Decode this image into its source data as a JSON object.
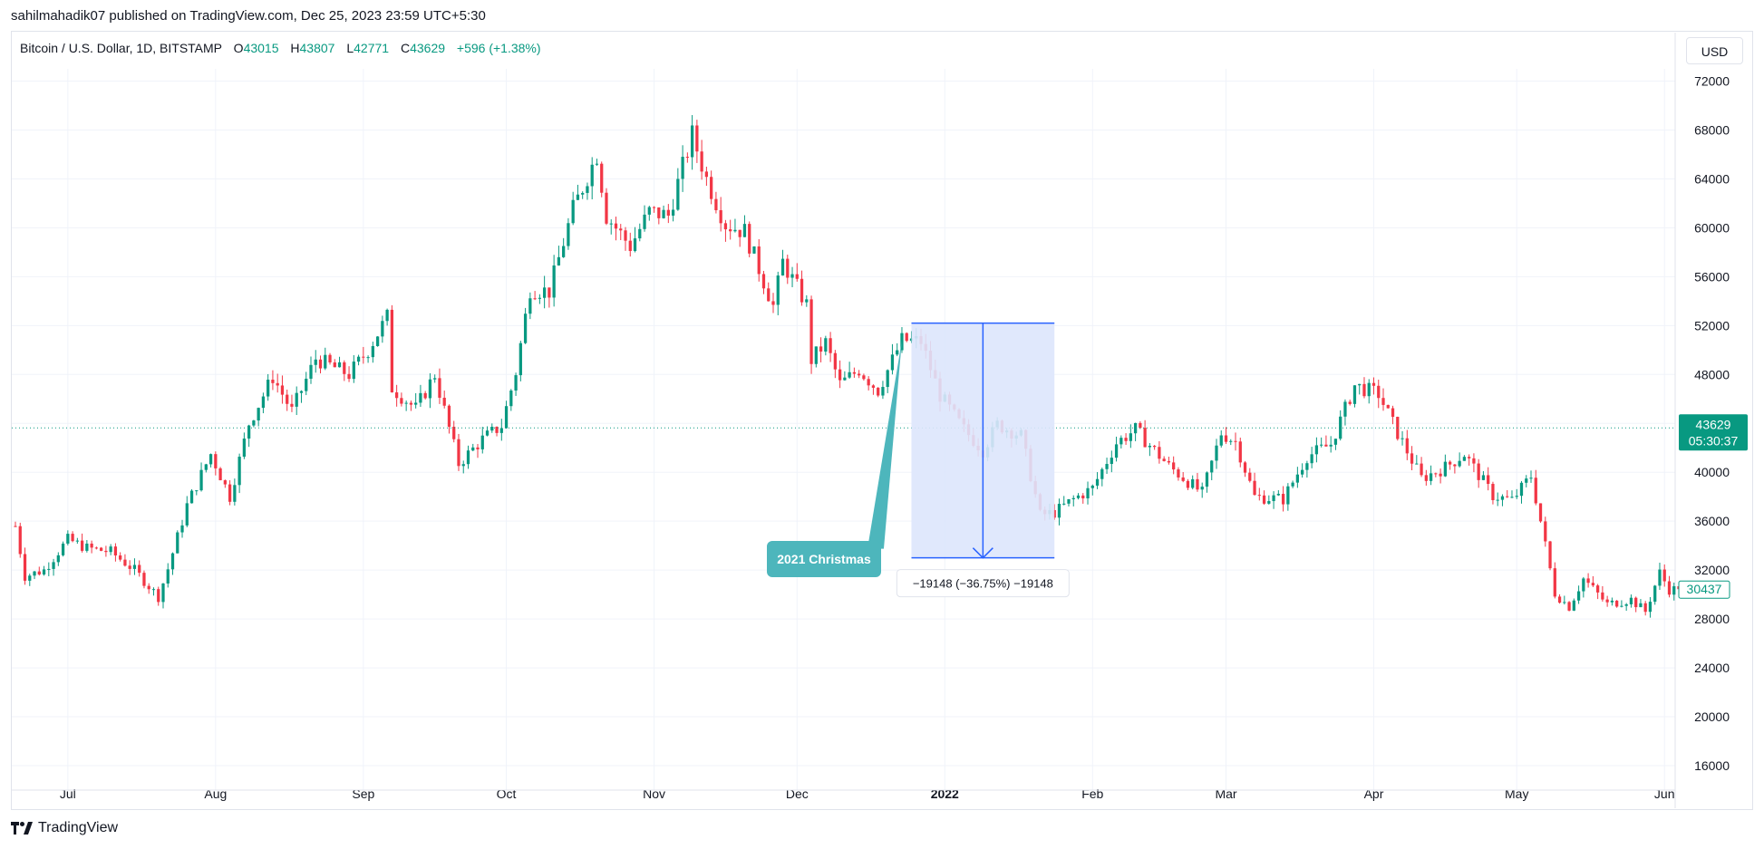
{
  "header": {
    "published_by": "sahilmahadik07 published on TradingView.com, Dec 25, 2023 23:59 UTC+5:30"
  },
  "legend": {
    "symbol": "Bitcoin / U.S. Dollar, 1D, BITSTAMP",
    "o_label": "O",
    "o_value": "43015",
    "h_label": "H",
    "h_value": "43807",
    "l_label": "L",
    "l_value": "42771",
    "c_label": "C",
    "c_value": "43629",
    "change": "+596 (+1.38%)"
  },
  "currency_button": "USD",
  "footer": {
    "brand": "TradingView"
  },
  "colors": {
    "up": "#089981",
    "down": "#f23645",
    "measure_fill": "#dde6fc",
    "measure_line": "#2962ff",
    "callout": "#4db6bc",
    "price_tag": "#089981"
  },
  "chart_data": {
    "type": "candlestick",
    "ylim": [
      14000,
      73000
    ],
    "y_ticks": [
      16000,
      20000,
      24000,
      28000,
      32000,
      36000,
      40000,
      44000,
      48000,
      52000,
      56000,
      60000,
      64000,
      68000,
      72000
    ],
    "x_tick_labels": [
      "Jul",
      "Aug",
      "Sep",
      "Oct",
      "Nov",
      "Dec",
      "2022",
      "Feb",
      "Mar",
      "Apr",
      "May",
      "Jun"
    ],
    "x_tick_dates": [
      "2021-07-01",
      "2021-08-01",
      "2021-09-01",
      "2021-10-01",
      "2021-11-01",
      "2021-12-01",
      "2022-01-01",
      "2022-02-01",
      "2022-03-01",
      "2022-04-01",
      "2022-05-01",
      "2022-06-01"
    ],
    "date_range": [
      "2021-06-20",
      "2022-06-04"
    ],
    "control_points": [
      [
        "2021-06-20",
        35600
      ],
      [
        "2021-06-22",
        31500
      ],
      [
        "2021-06-26",
        32000
      ],
      [
        "2021-07-01",
        34500
      ],
      [
        "2021-07-05",
        33800
      ],
      [
        "2021-07-10",
        33500
      ],
      [
        "2021-07-15",
        32000
      ],
      [
        "2021-07-20",
        29800
      ],
      [
        "2021-07-22",
        32100
      ],
      [
        "2021-07-26",
        37300
      ],
      [
        "2021-07-31",
        41500
      ],
      [
        "2021-08-04",
        38000
      ],
      [
        "2021-08-08",
        44000
      ],
      [
        "2021-08-13",
        47800
      ],
      [
        "2021-08-17",
        45000
      ],
      [
        "2021-08-22",
        49300
      ],
      [
        "2021-08-29",
        48000
      ],
      [
        "2021-09-02",
        50000
      ],
      [
        "2021-09-06",
        52700
      ],
      [
        "2021-09-07",
        46900
      ],
      [
        "2021-09-12",
        45200
      ],
      [
        "2021-09-16",
        48000
      ],
      [
        "2021-09-21",
        40700
      ],
      [
        "2021-09-26",
        42700
      ],
      [
        "2021-09-30",
        43800
      ],
      [
        "2021-10-03",
        48200
      ],
      [
        "2021-10-06",
        55000
      ],
      [
        "2021-10-10",
        54800
      ],
      [
        "2021-10-15",
        61500
      ],
      [
        "2021-10-20",
        66000
      ],
      [
        "2021-10-22",
        61000
      ],
      [
        "2021-10-27",
        58500
      ],
      [
        "2021-10-31",
        61300
      ],
      [
        "2021-11-04",
        61000
      ],
      [
        "2021-11-09",
        67600
      ],
      [
        "2021-11-12",
        64000
      ],
      [
        "2021-11-16",
        60300
      ],
      [
        "2021-11-20",
        59700
      ],
      [
        "2021-11-26",
        53600
      ],
      [
        "2021-11-28",
        57200
      ],
      [
        "2021-12-03",
        53700
      ],
      [
        "2021-12-04",
        49200
      ],
      [
        "2021-12-07",
        50600
      ],
      [
        "2021-12-10",
        47200
      ],
      [
        "2021-12-14",
        48400
      ],
      [
        "2021-12-18",
        46700
      ],
      [
        "2021-12-23",
        50800
      ],
      [
        "2021-12-27",
        50700
      ],
      [
        "2021-12-31",
        46300
      ],
      [
        "2022-01-05",
        43500
      ],
      [
        "2022-01-09",
        41800
      ],
      [
        "2022-01-12",
        43900
      ],
      [
        "2022-01-17",
        43000
      ],
      [
        "2022-01-21",
        36500
      ],
      [
        "2022-01-24",
        36700
      ],
      [
        "2022-01-28",
        37800
      ],
      [
        "2022-02-01",
        38700
      ],
      [
        "2022-02-06",
        42400
      ],
      [
        "2022-02-10",
        43500
      ],
      [
        "2022-02-13",
        42200
      ],
      [
        "2022-02-17",
        40500
      ],
      [
        "2022-02-24",
        38300
      ],
      [
        "2022-02-28",
        43200
      ],
      [
        "2022-03-03",
        42500
      ],
      [
        "2022-03-07",
        38000
      ],
      [
        "2022-03-13",
        37800
      ],
      [
        "2022-03-18",
        41300
      ],
      [
        "2022-03-23",
        42300
      ],
      [
        "2022-03-28",
        47100
      ],
      [
        "2022-04-02",
        46400
      ],
      [
        "2022-04-06",
        43200
      ],
      [
        "2022-04-11",
        39500
      ],
      [
        "2022-04-16",
        40400
      ],
      [
        "2022-04-20",
        41500
      ],
      [
        "2022-04-26",
        38100
      ],
      [
        "2022-04-30",
        37700
      ],
      [
        "2022-05-04",
        39700
      ],
      [
        "2022-05-06",
        36000
      ],
      [
        "2022-05-09",
        30100
      ],
      [
        "2022-05-12",
        29000
      ],
      [
        "2022-05-15",
        31300
      ],
      [
        "2022-05-20",
        29200
      ],
      [
        "2022-05-25",
        29600
      ],
      [
        "2022-05-28",
        28600
      ],
      [
        "2022-05-31",
        31800
      ],
      [
        "2022-06-02",
        30400
      ],
      [
        "2022-06-04",
        30437
      ]
    ],
    "current_price": "43629",
    "countdown": "05:30:37",
    "last_price": "30437",
    "measurement": {
      "start_date": "2021-12-25",
      "end_date": "2022-01-24",
      "top": 52200,
      "bottom": 33000,
      "label": "−19148 (−36.75%) −19148"
    },
    "callout": {
      "text": "2021 Christmas",
      "anchor_date": "2021-12-23",
      "anchor_price": 50800
    }
  }
}
